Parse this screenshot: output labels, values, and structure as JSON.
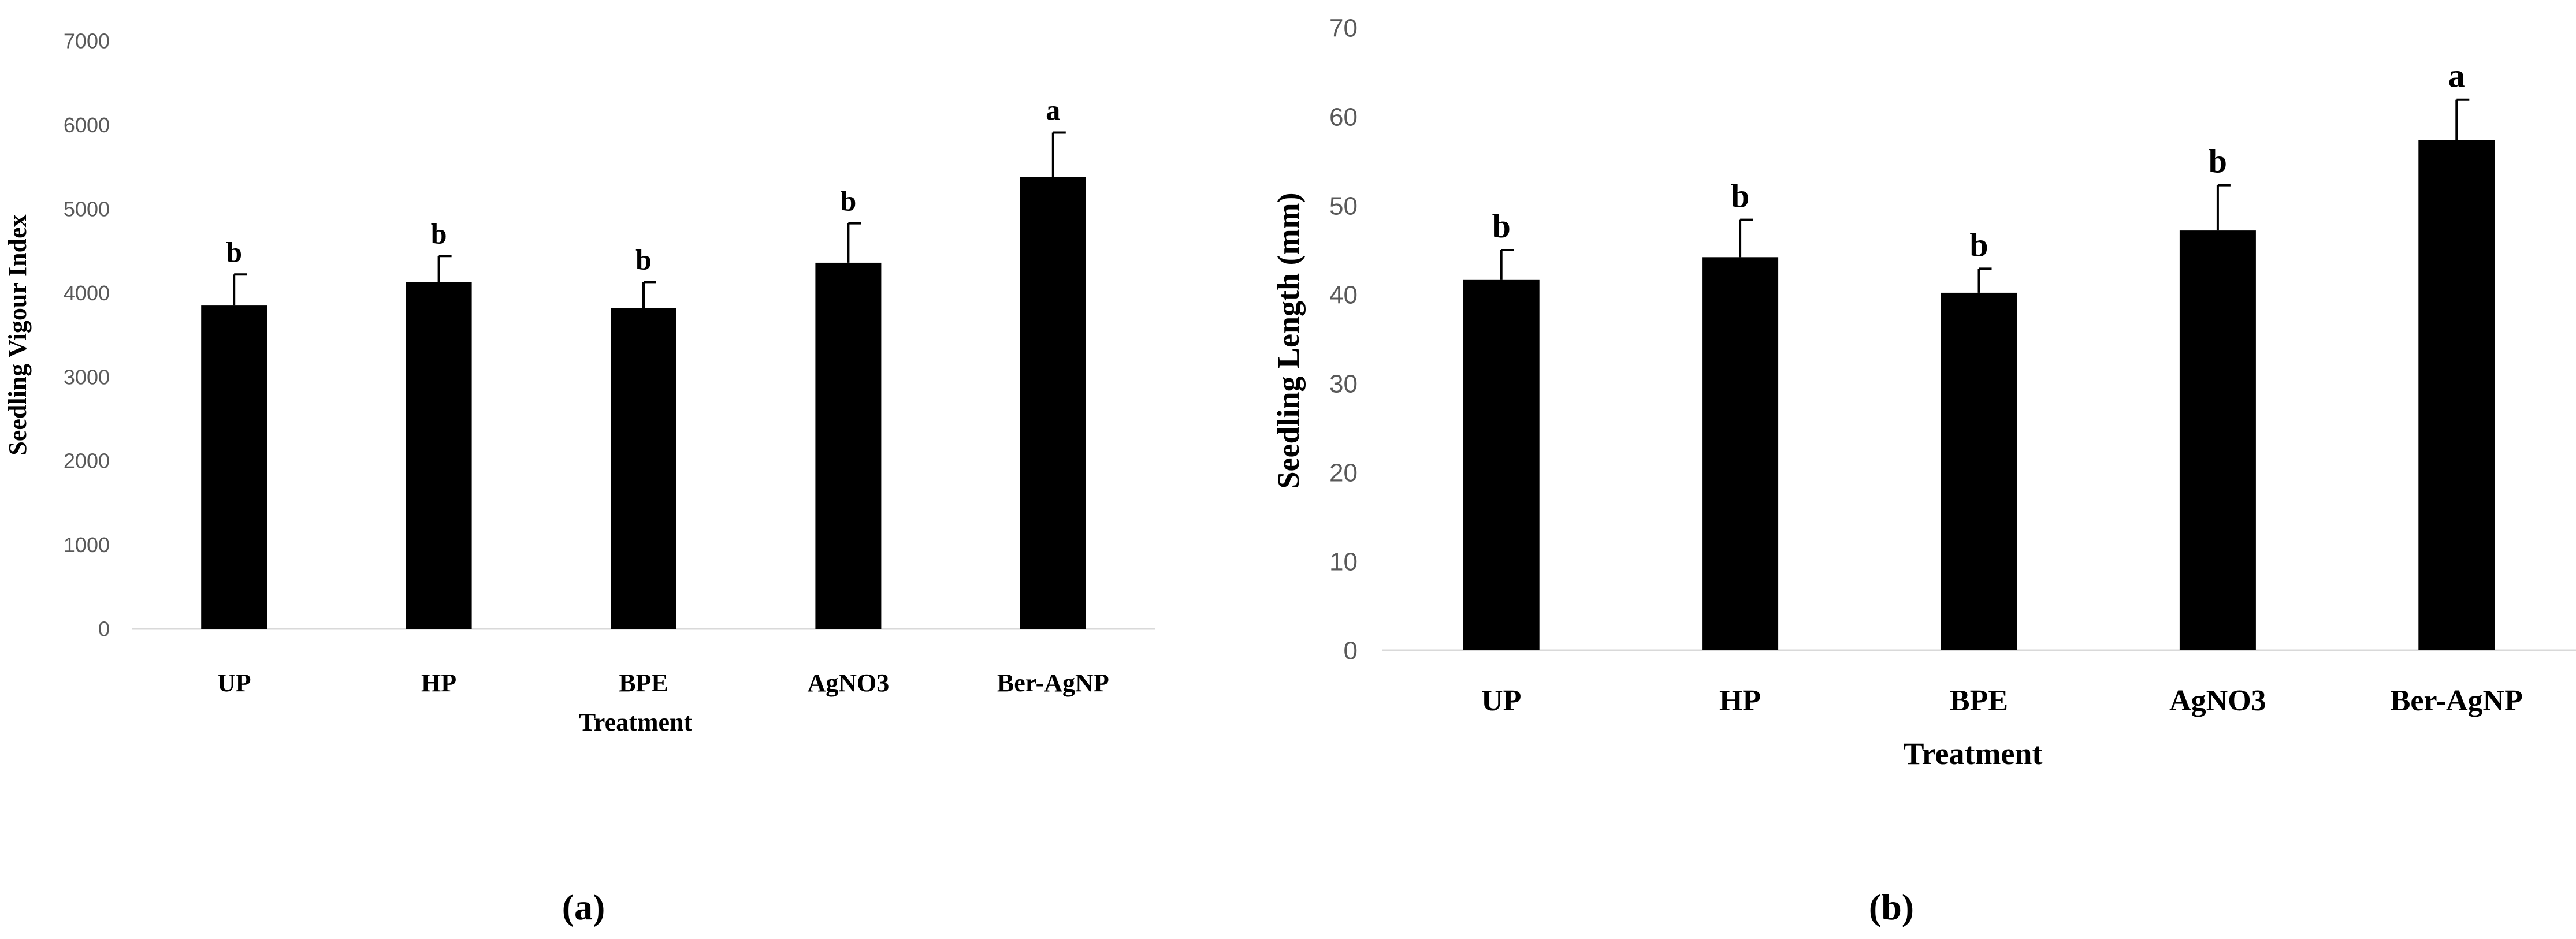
{
  "chart_data": [
    {
      "panel": "(a)",
      "type": "bar",
      "categories": [
        "UP",
        "HP",
        "BPE",
        "AgNO3",
        "Ber-AgNP"
      ],
      "values": [
        3850,
        4130,
        3820,
        4360,
        5380
      ],
      "error": [
        370,
        310,
        310,
        470,
        530
      ],
      "letters": [
        "b",
        "b",
        "b",
        "b",
        "a"
      ],
      "xlabel": "Treatment",
      "ylabel": "Seedling Vigour Index",
      "ylim": [
        0,
        7000
      ],
      "yticks": [
        0,
        1000,
        2000,
        3000,
        4000,
        5000,
        6000,
        7000
      ],
      "bar_color": "#000000",
      "grid": false
    },
    {
      "panel": "(b)",
      "type": "bar",
      "categories": [
        "UP",
        "HP",
        "BPE",
        "AgNO3",
        "Ber-AgNP"
      ],
      "values": [
        41.7,
        44.2,
        40.2,
        47.2,
        57.4
      ],
      "error": [
        3.3,
        4.2,
        2.7,
        5.1,
        4.5
      ],
      "letters": [
        "b",
        "b",
        "b",
        "b",
        "a"
      ],
      "xlabel": "Treatment",
      "ylabel": "Seedling Length (mm)",
      "ylim": [
        0,
        70
      ],
      "yticks": [
        0,
        10,
        20,
        30,
        40,
        50,
        60,
        70
      ],
      "bar_color": "#000000",
      "grid": false
    }
  ]
}
